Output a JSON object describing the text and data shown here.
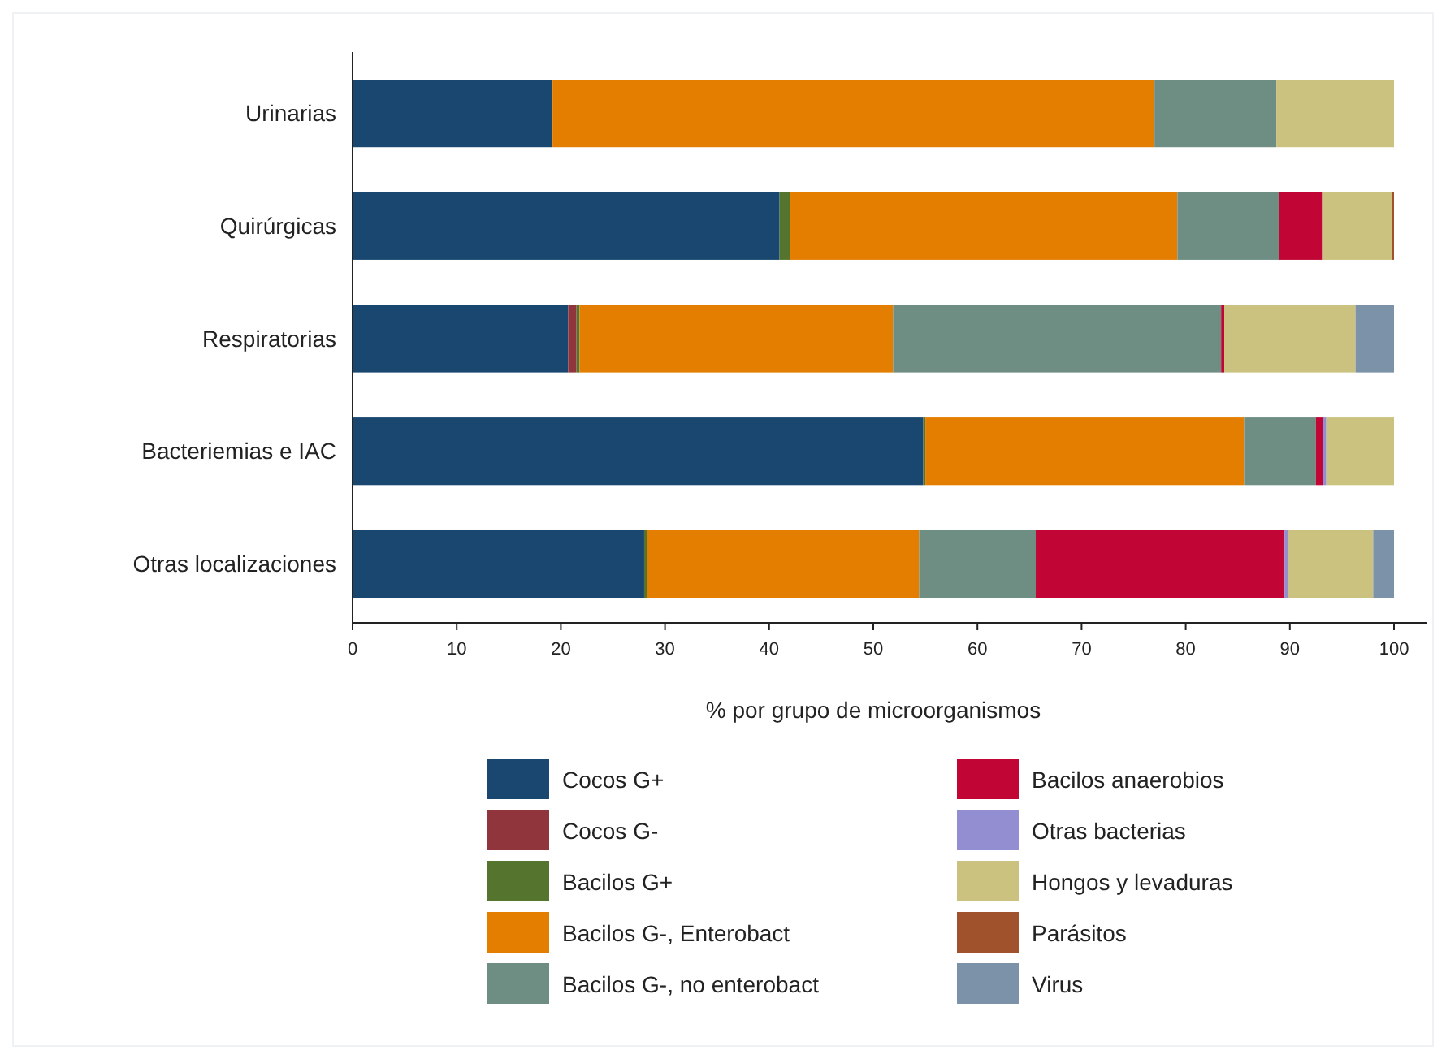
{
  "chart_data": {
    "type": "bar",
    "orientation": "horizontal",
    "stacked": true,
    "xlabel": "% por grupo de microorganismos",
    "categories": [
      "Urinarias",
      "Quirúrgicas",
      "Respiratorias",
      "Bacteriemias e IAC",
      "Otras localizaciones"
    ],
    "xlim": [
      0,
      100
    ],
    "xticks": [
      0,
      10,
      20,
      30,
      40,
      50,
      60,
      70,
      80,
      90,
      100
    ],
    "legend": "bottom",
    "grid": false,
    "series": [
      {
        "name": "Cocos G+",
        "color": "#1a476f",
        "values": [
          19.2,
          41.0,
          20.7,
          54.8,
          28.0
        ]
      },
      {
        "name": "Cocos G-",
        "color": "#90353b",
        "values": [
          0,
          0,
          0.8,
          0,
          0
        ]
      },
      {
        "name": "Bacilos G+",
        "color": "#55752f",
        "values": [
          0,
          1.0,
          0.3,
          0.2,
          0.3
        ]
      },
      {
        "name": "Bacilos G-, Enterobact",
        "color": "#e37e00",
        "values": [
          57.8,
          37.2,
          30.1,
          30.6,
          26.1
        ]
      },
      {
        "name": "Bacilos G-, no enterobact",
        "color": "#6e8e84",
        "values": [
          11.7,
          9.8,
          31.5,
          6.9,
          11.2
        ]
      },
      {
        "name": "Bacilos anaerobios",
        "color": "#c10534",
        "values": [
          0,
          4.1,
          0.3,
          0.7,
          23.9
        ]
      },
      {
        "name": "Otras bacterias",
        "color": "#938dd2",
        "values": [
          0,
          0,
          0,
          0.3,
          0.3
        ]
      },
      {
        "name": "Hongos y levaduras",
        "color": "#cac27e",
        "values": [
          11.3,
          6.7,
          12.6,
          6.5,
          8.2
        ]
      },
      {
        "name": "Parásitos",
        "color": "#a0522d",
        "values": [
          0,
          0.2,
          0,
          0,
          0
        ]
      },
      {
        "name": "Virus",
        "color": "#7b92a8",
        "values": [
          0,
          0,
          3.7,
          0,
          2.0
        ]
      }
    ]
  }
}
